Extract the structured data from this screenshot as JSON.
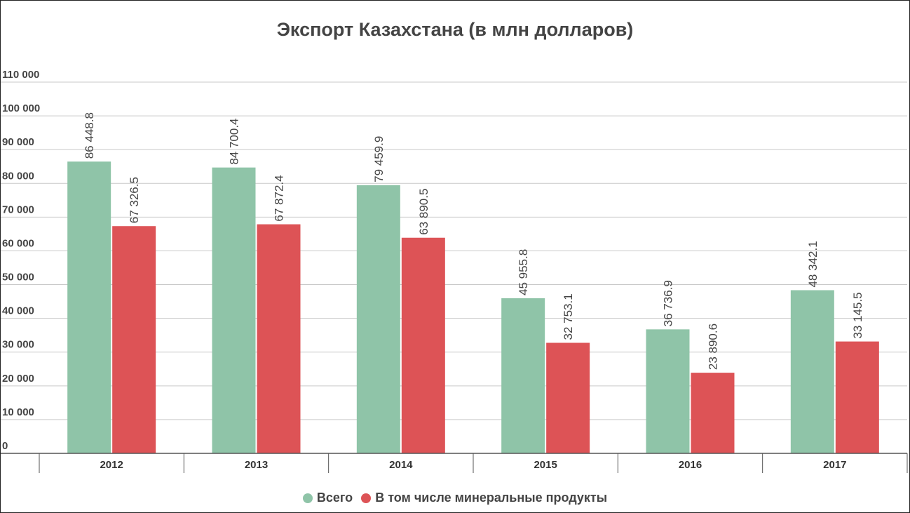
{
  "chart_data": {
    "type": "bar",
    "title": "Экспорт Казахстана (в млн долларов)",
    "categories": [
      "2012",
      "2013",
      "2014",
      "2015",
      "2016",
      "2017"
    ],
    "series": [
      {
        "name": "Всего",
        "color": "#8fc4a8",
        "values": [
          86448.8,
          84700.4,
          79459.9,
          45955.8,
          36736.9,
          48342.1
        ],
        "labels": [
          "86 448.8",
          "84 700.4",
          "79 459.9",
          "45 955.8",
          "36 736.9",
          "48 342.1"
        ]
      },
      {
        "name": "В том числе минеральные продукты",
        "color": "#dd5356",
        "values": [
          67326.5,
          67872.4,
          63890.5,
          32753.1,
          23890.6,
          33145.5
        ],
        "labels": [
          "67 326.5",
          "67 872.4",
          "63 890.5",
          "32 753.1",
          "23 890.6",
          "33 145.5"
        ]
      }
    ],
    "ylim": [
      0,
      110000
    ],
    "yticks": [
      0,
      10000,
      20000,
      30000,
      40000,
      50000,
      60000,
      70000,
      80000,
      90000,
      100000,
      110000
    ],
    "ytick_labels": [
      "0",
      "10 000",
      "20 000",
      "30 000",
      "40 000",
      "50 000",
      "60 000",
      "70 000",
      "80 000",
      "90 000",
      "100 000",
      "110 000"
    ],
    "grid": true,
    "legend_position": "bottom"
  }
}
